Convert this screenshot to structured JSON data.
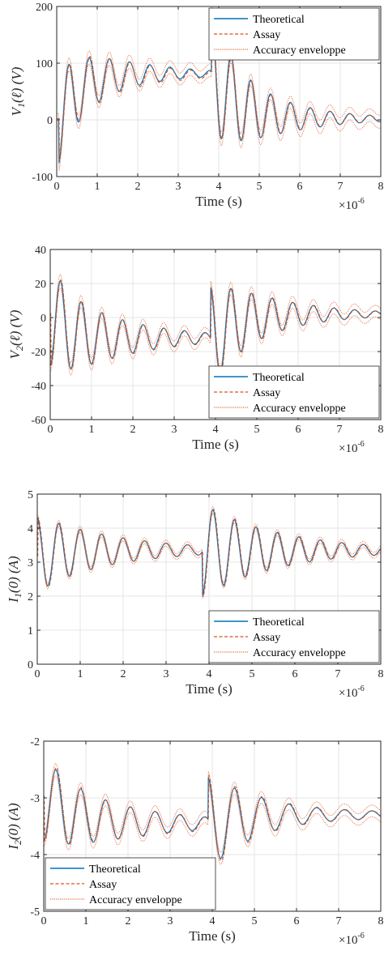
{
  "colors": {
    "theoretical": "#0072BD",
    "assay": "#D95319",
    "envelope": "#E8704A",
    "grid": "#e6e6e6",
    "axis": "#262626"
  },
  "legend_labels": [
    "Theoretical",
    "Assay",
    "Accuracy enveloppe"
  ],
  "chart_data": [
    {
      "type": "line",
      "ylabel": "V_1(ℓ) (V)",
      "xlabel": "Time (s)",
      "x_exponent": "×10^-6",
      "xlim": [
        0,
        8
      ],
      "ylim": [
        -100,
        200
      ],
      "xticks": [
        0,
        1,
        2,
        3,
        4,
        5,
        6,
        7,
        8
      ],
      "yticks": [
        -100,
        0,
        100,
        200
      ],
      "legend_position": "top-right",
      "signal": {
        "type": "step_response",
        "segments": [
          {
            "t0": 0.05,
            "base_from": 0,
            "base_to": 82,
            "amp": -78,
            "freq": 2.0,
            "decay": 0.7,
            "tau": 0.5
          },
          {
            "t0": 3.82,
            "base_from": 0,
            "base_to": -80,
            "amp": 100,
            "freq": 2.05,
            "decay": 0.72,
            "tau": 0.6
          }
        ],
        "envelope_abs": 10,
        "envelope_rel": 0.1,
        "assay_shift": 0.012,
        "assay_scale": 0.97
      },
      "series": [
        {
          "name": "Theoretical",
          "role": "theory"
        },
        {
          "name": "Assay",
          "role": "assay"
        },
        {
          "name": "Accuracy enveloppe",
          "role": "envelope"
        }
      ]
    },
    {
      "type": "line",
      "ylabel": "V_2(ℓ) (V)",
      "xlabel": "Time (s)",
      "x_exponent": "×10^-6",
      "xlim": [
        0,
        8
      ],
      "ylim": [
        -60,
        40
      ],
      "xticks": [
        0,
        1,
        2,
        3,
        4,
        5,
        6,
        7,
        8
      ],
      "yticks": [
        -60,
        -40,
        -20,
        0,
        20,
        40
      ],
      "legend_position": "bottom-right",
      "signal": {
        "type": "step_response",
        "segments": [
          {
            "t0": 0.0,
            "base_from": 2,
            "base_to": -12,
            "amp": -30,
            "freq": 2.0,
            "decay": 0.6,
            "tau": 0.4
          },
          {
            "t0": 3.88,
            "base_from": 0,
            "base_to": 14,
            "amp": 30,
            "freq": 2.0,
            "decay": 0.7,
            "tau": 0.6
          }
        ],
        "envelope_abs": 3,
        "envelope_rel": 0.1,
        "assay_shift": 0.012,
        "assay_scale": 1.02
      },
      "series": [
        {
          "name": "Theoretical",
          "role": "theory"
        },
        {
          "name": "Assay",
          "role": "assay"
        },
        {
          "name": "Accuracy enveloppe",
          "role": "envelope"
        }
      ]
    },
    {
      "type": "line",
      "ylabel": "I_1(0) (A)",
      "xlabel": "Time (s)",
      "x_exponent": "×10^-6",
      "xlim": [
        0,
        8
      ],
      "ylim": [
        0,
        5
      ],
      "xticks": [
        0,
        1,
        2,
        3,
        4,
        5,
        6,
        7,
        8
      ],
      "yticks": [
        0,
        1,
        2,
        3,
        4,
        5
      ],
      "legend_position": "bottom-right",
      "signal": {
        "type": "step_response",
        "segments": [
          {
            "t0": 0.0,
            "base_from": 3.2,
            "base_to": 3.35,
            "amp": 1.1,
            "freq": 2.0,
            "decay": 0.55,
            "tau": 0.5
          },
          {
            "t0": 3.85,
            "base_from": 0,
            "base_to": 0,
            "amp": -1.3,
            "freq": 2.0,
            "decay": 0.55,
            "tau": 0.5
          }
        ],
        "envelope_abs": 0.08,
        "envelope_rel": 0.03,
        "assay_shift": 0.012,
        "assay_scale": 1.03
      },
      "series": [
        {
          "name": "Theoretical",
          "role": "theory"
        },
        {
          "name": "Assay",
          "role": "assay"
        },
        {
          "name": "Accuracy enveloppe",
          "role": "envelope"
        }
      ]
    },
    {
      "type": "line",
      "ylabel": "I_2(0) (A)",
      "xlabel": "Time (s)",
      "x_exponent": "×10^-6",
      "xlim": [
        0,
        8
      ],
      "ylim": [
        -5,
        -2
      ],
      "xticks": [
        0,
        1,
        2,
        3,
        4,
        5,
        6,
        7,
        8
      ],
      "yticks": [
        -5,
        -4,
        -3,
        -2
      ],
      "legend_position": "bottom-left",
      "signal": {
        "type": "step_response",
        "segments": [
          {
            "t0": 0.0,
            "base_from": -3.0,
            "base_to": -3.45,
            "amp": -0.75,
            "freq": 1.7,
            "decay": 0.5,
            "tau": 0.7
          },
          {
            "t0": 3.9,
            "base_from": 0,
            "base_to": 0.15,
            "amp": 0.75,
            "freq": 1.55,
            "decay": 0.6,
            "tau": 0.7
          }
        ],
        "envelope_abs": 0.1,
        "envelope_rel": 0.03,
        "assay_shift": 0.012,
        "assay_scale": 1.05
      },
      "series": [
        {
          "name": "Theoretical",
          "role": "theory"
        },
        {
          "name": "Assay",
          "role": "assay"
        },
        {
          "name": "Accuracy enveloppe",
          "role": "envelope"
        }
      ]
    }
  ]
}
